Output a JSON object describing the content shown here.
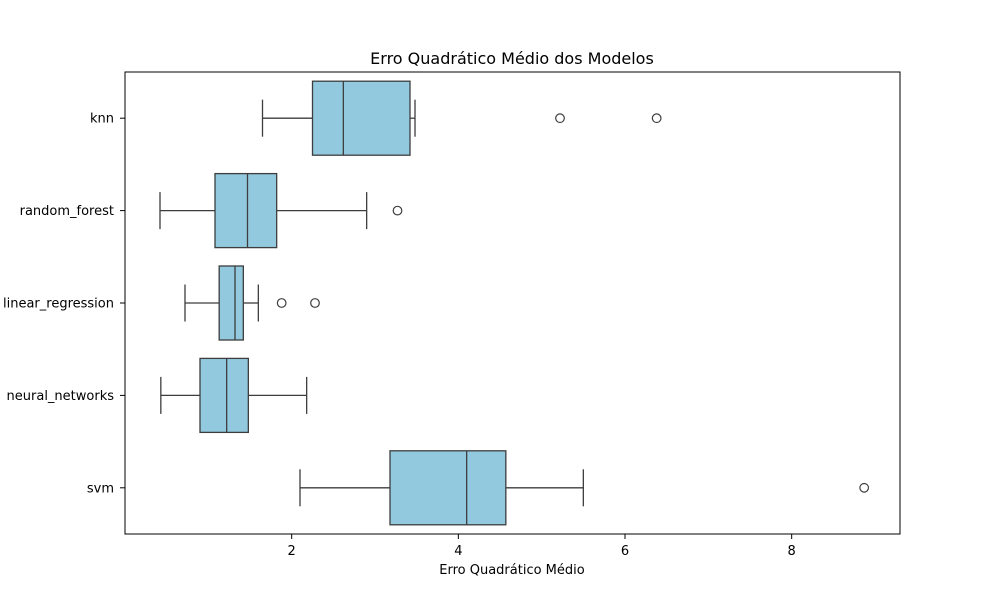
{
  "chart_data": {
    "type": "boxplot",
    "title": "Erro Quadrático Médio dos Modelos",
    "xlabel": "Erro Quadrático Médio",
    "ylabel": "",
    "orientation": "horizontal",
    "xlim": [
      0.0,
      9.3
    ],
    "xticks": [
      2,
      4,
      6,
      8
    ],
    "grid": false,
    "legend": "none",
    "colors": {
      "box_fill": "#92c9df",
      "line": "#3d3d3d",
      "axes": "#000000"
    },
    "categories": [
      "knn",
      "random_forest",
      "linear_regression",
      "neural_networks",
      "svm"
    ],
    "boxes": [
      {
        "category": "knn",
        "whisker_low": 1.65,
        "q1": 2.25,
        "median": 2.62,
        "q3": 3.42,
        "whisker_high": 3.48,
        "outliers": [
          5.22,
          6.38
        ]
      },
      {
        "category": "random_forest",
        "whisker_low": 0.42,
        "q1": 1.08,
        "median": 1.47,
        "q3": 1.82,
        "whisker_high": 2.9,
        "outliers": [
          3.27
        ]
      },
      {
        "category": "linear_regression",
        "whisker_low": 0.72,
        "q1": 1.13,
        "median": 1.32,
        "q3": 1.42,
        "whisker_high": 1.6,
        "outliers": [
          1.88,
          2.28
        ]
      },
      {
        "category": "neural_networks",
        "whisker_low": 0.43,
        "q1": 0.9,
        "median": 1.22,
        "q3": 1.48,
        "whisker_high": 2.18,
        "outliers": []
      },
      {
        "category": "svm",
        "whisker_low": 2.1,
        "q1": 3.18,
        "median": 4.1,
        "q3": 4.57,
        "whisker_high": 5.5,
        "outliers": [
          8.87
        ]
      }
    ]
  }
}
